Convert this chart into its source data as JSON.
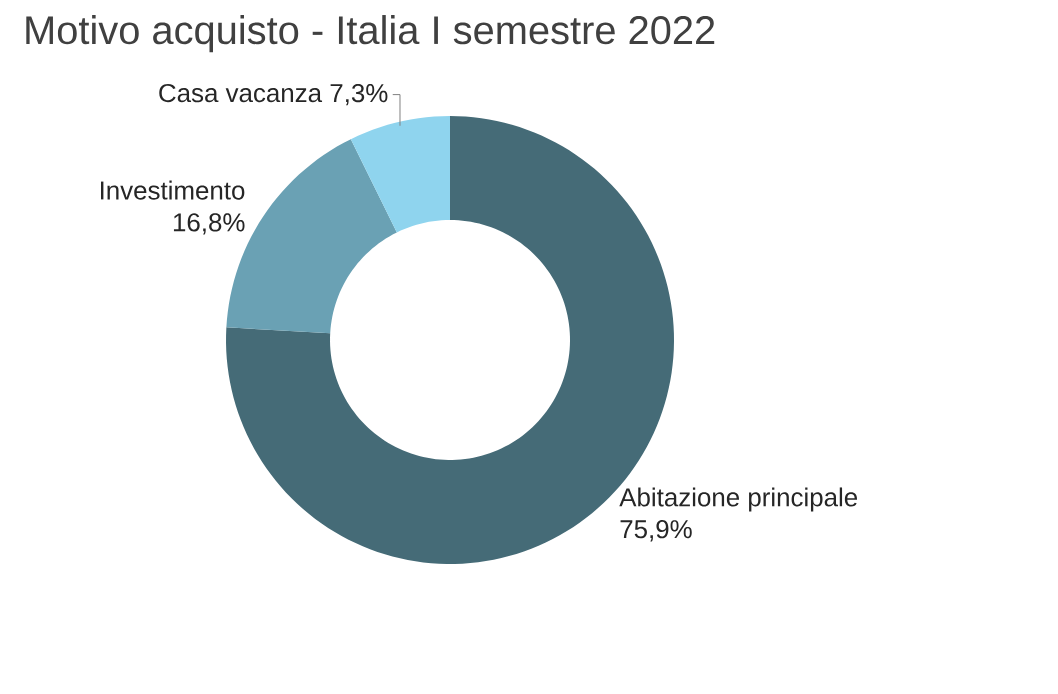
{
  "chart_data": {
    "type": "donut",
    "title": "Motivo acquisto - Italia I semestre 2022",
    "categories": [
      "Abitazione principale",
      "Investimento",
      "Casa vacanza"
    ],
    "values": [
      75.9,
      16.8,
      7.3
    ],
    "value_labels": [
      "75,9%",
      "16,8%",
      "7,3%"
    ],
    "colors": [
      "#456b77",
      "#6aa1b4",
      "#8fd4ee"
    ]
  }
}
